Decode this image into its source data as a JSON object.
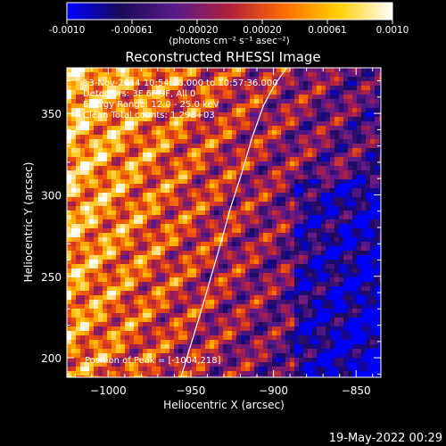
{
  "colorbar": {
    "ticks": [
      "-0.0010",
      "-0.00061",
      "-0.00020",
      "0.00020",
      "0.00061",
      "0.0010"
    ],
    "unit_label": "(photons cm⁻² s⁻¹ asec⁻²)",
    "colors": [
      "#0000ff",
      "#1a0a5a",
      "#5a1a8a",
      "#b0203c",
      "#ff6a00",
      "#ffd000",
      "#ffffff"
    ]
  },
  "chart_data": {
    "type": "heatmap",
    "title": "Reconstructed RHESSI Image",
    "xlabel": "Heliocentric X (arcsec)",
    "ylabel": "Heliocentric Y (arcsec)",
    "xlim": [
      -1025,
      -835
    ],
    "ylim": [
      188,
      378
    ],
    "xticks": [
      -1000,
      -950,
      -900,
      -850
    ],
    "xtick_labels": [
      "−1000",
      "−950",
      "−900",
      "−850"
    ],
    "yticks": [
      200,
      250,
      300,
      350
    ],
    "ytick_labels": [
      "200",
      "250",
      "300",
      "350"
    ],
    "annotations": [
      "13-Nov-2014 10:54:28.000 to 10:57:36.000",
      "Detectors: 3F 6F 9F, All 0",
      "Energy Range: 12.0 - 25.0 keV",
      "Clean    Total counts: 1.29E+03",
      "Position of Peak = [-1004,218]"
    ],
    "peak_position": [
      -1004,
      218
    ],
    "limb_curve": {
      "x": [
        -956,
        -950,
        -944,
        -938,
        -932,
        -926,
        -919,
        -913,
        -906,
        -899,
        -892
      ],
      "y": [
        188,
        208,
        228,
        249,
        270,
        292,
        314,
        335,
        355,
        368,
        378
      ]
    }
  },
  "footer": {
    "timestamp": "19-May-2022 00:29"
  }
}
